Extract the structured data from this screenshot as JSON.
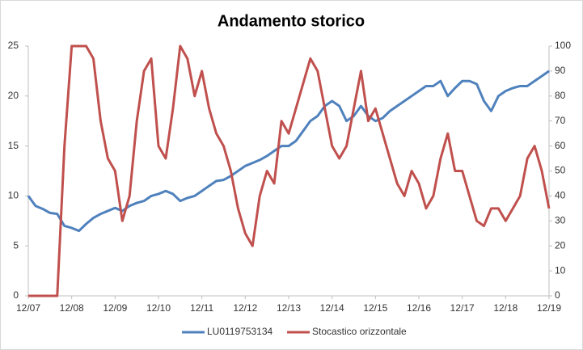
{
  "chart_data": {
    "type": "line",
    "title": "Andamento storico",
    "categories": [
      "12/07",
      null,
      null,
      null,
      null,
      null,
      "12/08",
      null,
      null,
      null,
      null,
      null,
      "12/09",
      null,
      null,
      null,
      null,
      null,
      "12/10",
      null,
      null,
      null,
      null,
      null,
      "12/11",
      null,
      null,
      null,
      null,
      null,
      "12/12",
      null,
      null,
      null,
      null,
      null,
      "12/13",
      null,
      null,
      null,
      null,
      null,
      "12/14",
      null,
      null,
      null,
      null,
      null,
      "12/15",
      null,
      null,
      null,
      null,
      null,
      "12/16",
      null,
      null,
      null,
      null,
      null,
      "12/17",
      null,
      null,
      null,
      null,
      null,
      "12/18",
      null,
      null,
      null,
      null,
      null,
      "12/19"
    ],
    "series": [
      {
        "name": "LU0119753134",
        "color": "#4f81bd",
        "values": [
          10,
          9,
          8.7,
          8.3,
          8.2,
          7,
          6.8,
          6.5,
          7.2,
          7.8,
          8.2,
          8.5,
          8.8,
          8.5,
          9,
          9.3,
          9.5,
          10,
          10.2,
          10.5,
          10.2,
          9.5,
          9.8,
          10,
          10.5,
          11,
          11.5,
          11.6,
          12,
          12.5,
          13,
          13.3,
          13.6,
          14,
          14.5,
          15,
          15,
          15.5,
          16.5,
          17.5,
          18,
          19,
          19.5,
          19,
          17.5,
          18,
          19,
          18,
          17.5,
          17.8,
          18.5,
          19,
          19.5,
          20,
          20.5,
          21,
          21,
          21.5,
          20,
          20.8,
          21.5,
          21.5,
          21.2,
          19.5,
          18.5,
          20,
          20.5,
          20.8,
          21,
          21,
          21.5,
          22,
          22.5
        ]
      },
      {
        "name": "Stocastico orizzontale",
        "color": "#c0504d",
        "axis": "y2",
        "values": [
          0,
          0,
          0,
          0,
          0,
          60,
          100,
          100,
          100,
          95,
          70,
          55,
          50,
          30,
          40,
          70,
          90,
          95,
          60,
          55,
          75,
          100,
          95,
          80,
          90,
          75,
          65,
          60,
          50,
          35,
          25,
          20,
          40,
          50,
          45,
          70,
          65,
          75,
          85,
          95,
          90,
          75,
          60,
          55,
          60,
          75,
          90,
          70,
          75,
          65,
          55,
          45,
          40,
          50,
          45,
          35,
          40,
          55,
          65,
          50,
          50,
          40,
          30,
          28,
          35,
          35,
          30,
          35,
          40,
          55,
          60,
          50,
          35
        ]
      }
    ],
    "ylim": [
      0,
      25
    ],
    "yticks": [
      0,
      5,
      10,
      15,
      20,
      25
    ],
    "y2lim": [
      0,
      100
    ],
    "y2ticks": [
      0,
      10,
      20,
      30,
      40,
      50,
      60,
      70,
      80,
      90,
      100
    ],
    "grid": false,
    "legend": "bottom"
  }
}
